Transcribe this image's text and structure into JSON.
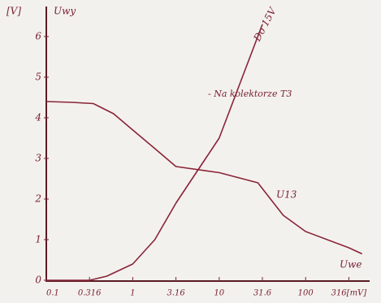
{
  "chart_data": {
    "type": "line",
    "y_unit": "[V]",
    "y_label": "Uwy",
    "x_label": "Uwe",
    "annotations": [
      "- Na kolektorze T3"
    ],
    "xscale": "log",
    "xlim": [
      0.1,
      550
    ],
    "ylim": [
      0,
      6.7
    ],
    "xticks": [
      0.1,
      0.316,
      1,
      3.16,
      10,
      31.6,
      100,
      {
        "value": 316,
        "label": "316[mV]"
      }
    ],
    "yticks": [
      0,
      1,
      2,
      3,
      4,
      5,
      6
    ],
    "series": [
      {
        "name": "U13",
        "color": "#8a2436",
        "x": [
          0.1,
          0.2,
          0.35,
          0.6,
          1,
          1.9,
          3.16,
          10,
          28,
          55,
          100,
          316,
          450
        ],
        "values": [
          4.4,
          4.38,
          4.35,
          4.1,
          3.7,
          3.2,
          2.8,
          2.65,
          2.4,
          1.6,
          1.2,
          0.8,
          0.65
        ]
      },
      {
        "name": "Do 15V",
        "color": "#8a2436",
        "x": [
          0.1,
          0.316,
          0.5,
          1,
          1.8,
          3.16,
          10,
          31.6
        ],
        "values": [
          0,
          0,
          0.1,
          0.4,
          1,
          1.9,
          3.5,
          6.3
        ]
      }
    ]
  }
}
